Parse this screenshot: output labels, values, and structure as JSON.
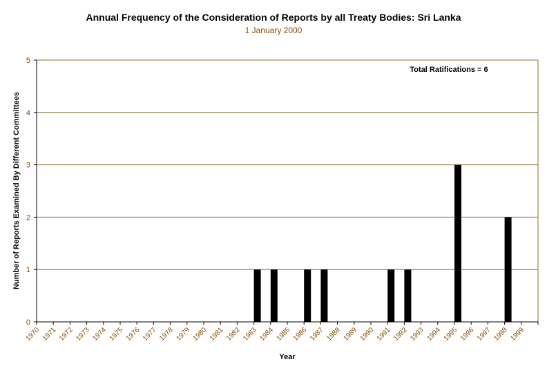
{
  "colors": {
    "grid": "#8B6F2A",
    "bar": "#000000",
    "axis": "#000000",
    "tick_text": "#8a4a00",
    "subtitle": "#8a4a00"
  },
  "chart_data": {
    "type": "bar",
    "title": "Annual Frequency of the Consideration of Reports by all Treaty Bodies: Sri Lanka",
    "subtitle": "1 January 2000",
    "xlabel": "Year",
    "ylabel": "Number of Reports Examined By Different Committees",
    "annotation": "Total Ratifications = 6",
    "ylim": [
      0,
      5
    ],
    "yticks": [
      0,
      1,
      2,
      3,
      4,
      5
    ],
    "grid": true,
    "categories": [
      "1970",
      "1971",
      "1972",
      "1973",
      "1974",
      "1975",
      "1976",
      "1977",
      "1978",
      "1979",
      "1980",
      "1981",
      "1982",
      "1983",
      "1984",
      "1985",
      "1986",
      "1987",
      "1988",
      "1989",
      "1990",
      "1991",
      "1992",
      "1993",
      "1994",
      "1995",
      "1996",
      "1997",
      "1998",
      "1999"
    ],
    "values": [
      0,
      0,
      0,
      0,
      0,
      0,
      0,
      0,
      0,
      0,
      0,
      0,
      0,
      1,
      1,
      0,
      1,
      1,
      0,
      0,
      0,
      1,
      1,
      0,
      0,
      3,
      0,
      0,
      2,
      0
    ]
  }
}
